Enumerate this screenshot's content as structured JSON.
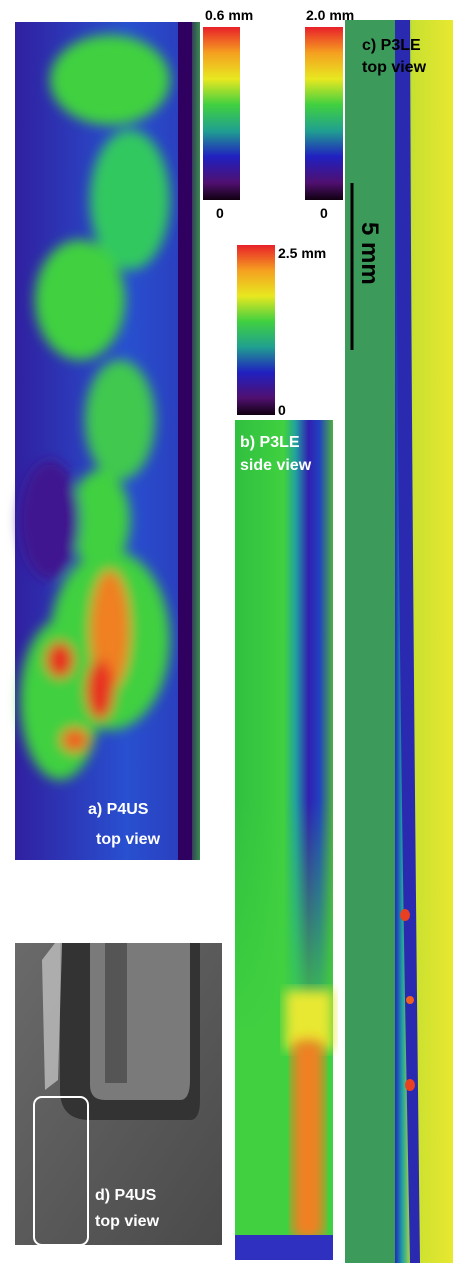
{
  "panels": [
    {
      "label": [
        "a) P4US",
        "top view"
      ]
    },
    {
      "label": [
        "b) P3LE",
        "side view"
      ]
    },
    {
      "label": [
        "c) P3LE",
        "top view"
      ]
    },
    {
      "label": [
        "d) P4US",
        "top view"
      ]
    }
  ],
  "colorbars": [
    {
      "max_label": "0.6 mm",
      "min_label": "0"
    },
    {
      "max_label": "2.0 mm",
      "min_label": "0"
    },
    {
      "max_label": "2.5 mm",
      "min_label": "0"
    }
  ],
  "scale_bar": {
    "label": "5 mm"
  }
}
